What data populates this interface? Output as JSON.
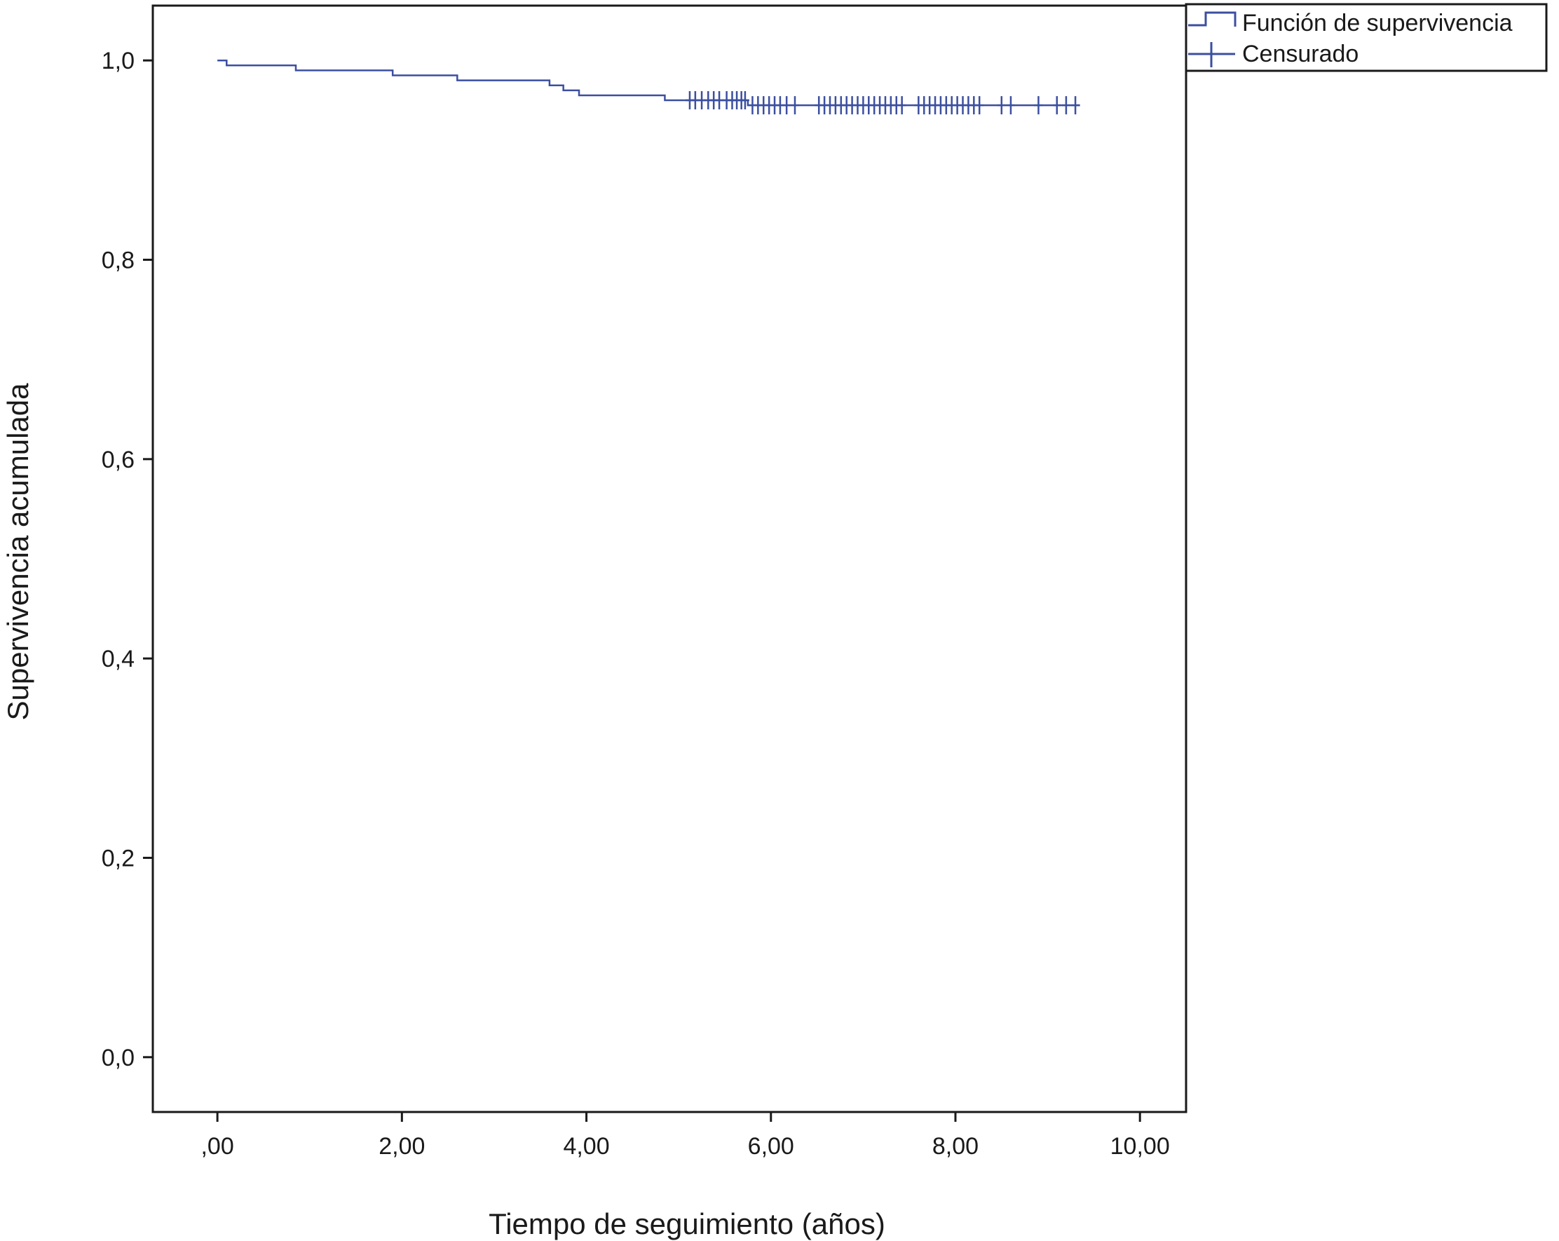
{
  "chart_data": {
    "type": "line",
    "title": "",
    "xlabel": "Tiempo de seguimiento (años)",
    "ylabel": "Supervivencia acumulada",
    "xlim": [
      -0.7,
      10.5
    ],
    "ylim": [
      -0.055,
      1.055
    ],
    "grid": false,
    "legend_position": "top-right, outside plot",
    "x_ticks": [
      {
        "value": 0,
        "label": ",00"
      },
      {
        "value": 2,
        "label": "2,00"
      },
      {
        "value": 4,
        "label": "4,00"
      },
      {
        "value": 6,
        "label": "6,00"
      },
      {
        "value": 8,
        "label": "8,00"
      },
      {
        "value": 10,
        "label": "10,00"
      }
    ],
    "y_ticks": [
      {
        "value": 0.0,
        "label": "0,0"
      },
      {
        "value": 0.2,
        "label": "0,2"
      },
      {
        "value": 0.4,
        "label": "0,4"
      },
      {
        "value": 0.6,
        "label": "0,6"
      },
      {
        "value": 0.8,
        "label": "0,8"
      },
      {
        "value": 1.0,
        "label": "1,0"
      }
    ],
    "legend": [
      {
        "name": "Función de supervivencia",
        "symbol": "step"
      },
      {
        "name": "Censurado",
        "symbol": "cross"
      }
    ],
    "colors": {
      "series": "#3b4fa0",
      "axis": "#1a1a1a"
    },
    "series": [
      {
        "name": "Función de supervivencia",
        "kind": "step",
        "x": [
          0.0,
          0.1,
          0.85,
          1.9,
          2.6,
          3.6,
          3.75,
          3.92,
          4.85,
          5.75,
          9.35
        ],
        "y": [
          1.0,
          0.995,
          0.99,
          0.985,
          0.98,
          0.975,
          0.97,
          0.965,
          0.96,
          0.955,
          0.955
        ]
      },
      {
        "name": "Censurado",
        "kind": "censored",
        "x": [
          5.12,
          5.18,
          5.25,
          5.32,
          5.38,
          5.44,
          5.52,
          5.58,
          5.63,
          5.68,
          5.72,
          5.8,
          5.86,
          5.92,
          5.98,
          6.04,
          6.1,
          6.17,
          6.26,
          6.52,
          6.58,
          6.64,
          6.7,
          6.76,
          6.82,
          6.88,
          6.94,
          7.0,
          7.06,
          7.12,
          7.18,
          7.24,
          7.3,
          7.36,
          7.42,
          7.6,
          7.66,
          7.72,
          7.78,
          7.84,
          7.9,
          7.96,
          8.02,
          8.08,
          8.14,
          8.2,
          8.26,
          8.5,
          8.6,
          8.9,
          9.1,
          9.2,
          9.3
        ],
        "y": [
          0.96,
          0.96,
          0.96,
          0.96,
          0.96,
          0.96,
          0.96,
          0.96,
          0.96,
          0.96,
          0.96,
          0.955,
          0.955,
          0.955,
          0.955,
          0.955,
          0.955,
          0.955,
          0.955,
          0.955,
          0.955,
          0.955,
          0.955,
          0.955,
          0.955,
          0.955,
          0.955,
          0.955,
          0.955,
          0.955,
          0.955,
          0.955,
          0.955,
          0.955,
          0.955,
          0.955,
          0.955,
          0.955,
          0.955,
          0.955,
          0.955,
          0.955,
          0.955,
          0.955,
          0.955,
          0.955,
          0.955,
          0.955,
          0.955,
          0.955,
          0.955,
          0.955,
          0.955
        ]
      }
    ]
  }
}
